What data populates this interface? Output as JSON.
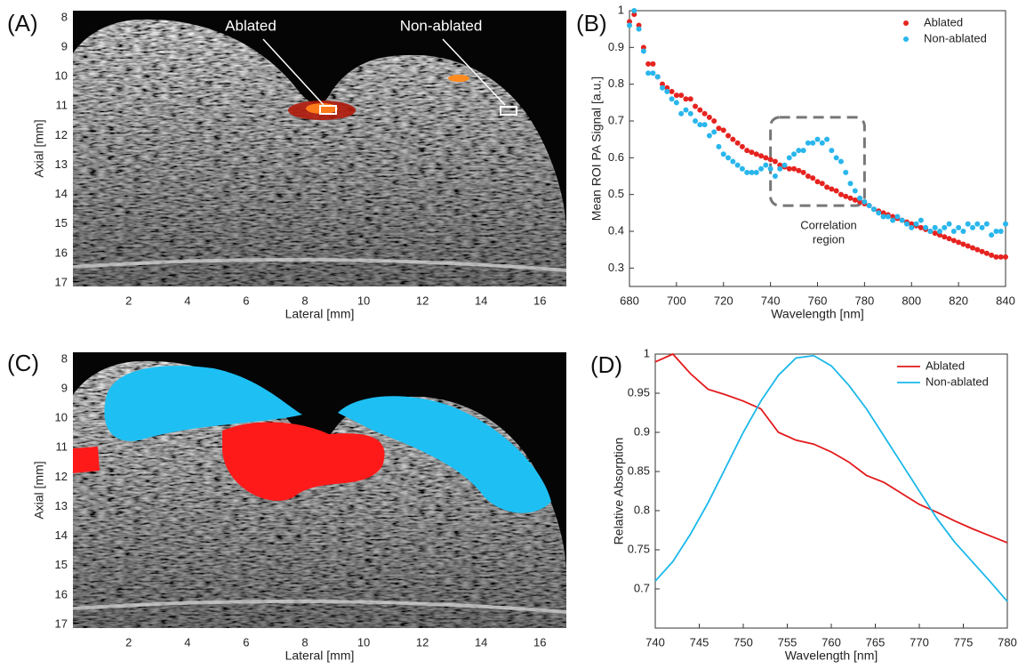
{
  "chart_data": [
    {
      "type": "image",
      "panel_label": "(A)",
      "xlabel": "Lateral [mm]",
      "ylabel": "Axial [mm]",
      "xlim": [
        0.1,
        16.9
      ],
      "ylim": [
        17.12,
        7.76
      ],
      "xticks": [
        2,
        4,
        6,
        8,
        10,
        12,
        14,
        16
      ],
      "yticks": [
        8,
        9,
        10,
        11,
        12,
        13,
        14,
        15,
        16,
        17
      ],
      "annotations": [
        "Ablated",
        "Non-ablated"
      ]
    },
    {
      "type": "scatter",
      "panel_label": "(B)",
      "xlabel": "Wavelength [nm]",
      "ylabel": "Mean ROI PA Signal [a.u.]",
      "xlim": [
        680,
        840
      ],
      "ylim": [
        0.25,
        1
      ],
      "xticks": [
        680,
        700,
        720,
        740,
        760,
        780,
        800,
        820,
        840
      ],
      "yticks": [
        0.3,
        0.4,
        0.5,
        0.6,
        0.7,
        0.8,
        0.9,
        1
      ],
      "legend": "top-right",
      "annotation": [
        "Correlation",
        "region"
      ],
      "highlight": {
        "xlim": [
          740,
          780
        ],
        "ylim": [
          0.47,
          0.71
        ]
      },
      "x": [
        680,
        682,
        684,
        686,
        688,
        690,
        692,
        694,
        696,
        698,
        700,
        702,
        704,
        706,
        708,
        710,
        712,
        714,
        716,
        718,
        720,
        722,
        724,
        726,
        728,
        730,
        732,
        734,
        736,
        738,
        740,
        742,
        744,
        746,
        748,
        750,
        752,
        754,
        756,
        758,
        760,
        762,
        764,
        766,
        768,
        770,
        772,
        774,
        776,
        778,
        780,
        782,
        784,
        786,
        788,
        790,
        792,
        794,
        796,
        798,
        800,
        802,
        804,
        806,
        808,
        810,
        812,
        814,
        816,
        818,
        820,
        822,
        824,
        826,
        828,
        830,
        832,
        834,
        836,
        838,
        840
      ],
      "series": [
        {
          "name": "Ablated",
          "color": "#e6231f",
          "values": [
            0.97,
            0.99,
            0.96,
            0.9,
            0.855,
            0.855,
            0.82,
            0.8,
            0.79,
            0.78,
            0.77,
            0.77,
            0.76,
            0.76,
            0.74,
            0.73,
            0.72,
            0.71,
            0.7,
            0.68,
            0.675,
            0.66,
            0.65,
            0.64,
            0.63,
            0.62,
            0.615,
            0.61,
            0.605,
            0.6,
            0.595,
            0.59,
            0.58,
            0.575,
            0.57,
            0.57,
            0.565,
            0.56,
            0.55,
            0.545,
            0.535,
            0.53,
            0.52,
            0.515,
            0.51,
            0.5,
            0.495,
            0.49,
            0.485,
            0.48,
            0.475,
            0.47,
            0.46,
            0.455,
            0.45,
            0.445,
            0.44,
            0.435,
            0.43,
            0.425,
            0.42,
            0.415,
            0.41,
            0.405,
            0.4,
            0.395,
            0.39,
            0.385,
            0.38,
            0.375,
            0.37,
            0.365,
            0.36,
            0.355,
            0.35,
            0.345,
            0.34,
            0.335,
            0.33,
            0.33,
            0.33
          ]
        },
        {
          "name": "Non-ablated",
          "color": "#29b6ec",
          "values": [
            0.96,
            1.0,
            0.95,
            0.89,
            0.83,
            0.83,
            0.82,
            0.79,
            0.78,
            0.76,
            0.75,
            0.72,
            0.73,
            0.72,
            0.7,
            0.69,
            0.69,
            0.66,
            0.67,
            0.63,
            0.61,
            0.6,
            0.59,
            0.58,
            0.57,
            0.56,
            0.56,
            0.56,
            0.57,
            0.58,
            0.57,
            0.55,
            0.57,
            0.58,
            0.6,
            0.61,
            0.62,
            0.62,
            0.64,
            0.64,
            0.65,
            0.64,
            0.65,
            0.62,
            0.6,
            0.59,
            0.56,
            0.53,
            0.51,
            0.49,
            0.48,
            0.47,
            0.46,
            0.45,
            0.44,
            0.44,
            0.43,
            0.44,
            0.43,
            0.42,
            0.41,
            0.42,
            0.43,
            0.41,
            0.4,
            0.41,
            0.4,
            0.41,
            0.42,
            0.4,
            0.41,
            0.4,
            0.42,
            0.41,
            0.42,
            0.41,
            0.42,
            0.39,
            0.4,
            0.4,
            0.42
          ]
        }
      ]
    },
    {
      "type": "image",
      "panel_label": "(C)",
      "xlabel": "Lateral [mm]",
      "ylabel": "Axial [mm]",
      "xlim": [
        0.1,
        16.9
      ],
      "ylim": [
        17.12,
        7.76
      ],
      "xticks": [
        2,
        4,
        6,
        8,
        10,
        12,
        14,
        16
      ],
      "yticks": [
        8,
        9,
        10,
        11,
        12,
        13,
        14,
        15,
        16,
        17
      ]
    },
    {
      "type": "line",
      "panel_label": "(D)",
      "xlabel": "Wavelength [nm]",
      "ylabel": "Relative Absorption",
      "xlim": [
        740,
        780
      ],
      "ylim": [
        0.65,
        1
      ],
      "xticks": [
        740,
        745,
        750,
        755,
        760,
        765,
        770,
        775,
        780
      ],
      "yticks": [
        0.7,
        0.75,
        0.8,
        0.85,
        0.9,
        0.95,
        1
      ],
      "legend": "top-right",
      "x": [
        740,
        742,
        744,
        746,
        748,
        750,
        752,
        754,
        756,
        758,
        760,
        762,
        764,
        766,
        768,
        770,
        772,
        774,
        776,
        778,
        780
      ],
      "series": [
        {
          "name": "Ablated",
          "color": "#e31a1c",
          "values": [
            0.99,
            1.0,
            0.975,
            0.955,
            0.948,
            0.94,
            0.93,
            0.9,
            0.89,
            0.885,
            0.875,
            0.862,
            0.845,
            0.836,
            0.822,
            0.808,
            0.798,
            0.787,
            0.777,
            0.768,
            0.759
          ]
        },
        {
          "name": "Non-ablated",
          "color": "#1ab8ea",
          "values": [
            0.71,
            0.735,
            0.77,
            0.81,
            0.855,
            0.9,
            0.94,
            0.973,
            0.995,
            0.998,
            0.985,
            0.96,
            0.93,
            0.895,
            0.86,
            0.825,
            0.79,
            0.76,
            0.735,
            0.71,
            0.684
          ]
        }
      ]
    }
  ]
}
